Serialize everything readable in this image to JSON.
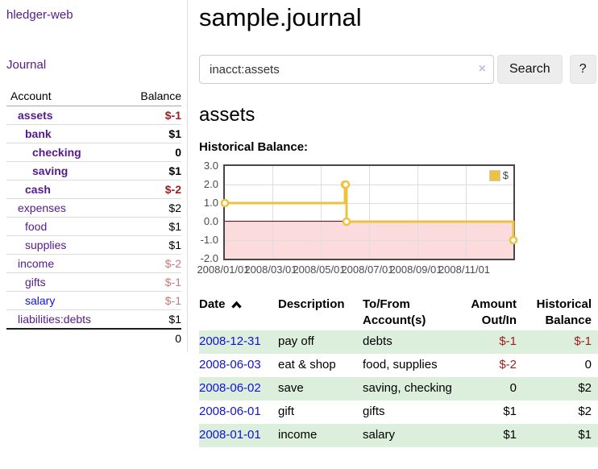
{
  "app": {
    "brand": "hledger-web",
    "nav_journal": "Journal"
  },
  "header": {
    "title": "sample.journal"
  },
  "search": {
    "value": "inacct:assets",
    "clear_icon": "×",
    "button": "Search",
    "help_button": "?"
  },
  "account_page": {
    "title": "assets",
    "chart_label": "Historical Balance:"
  },
  "sidebar": {
    "accounts_header": {
      "account": "Account",
      "balance": "Balance"
    },
    "accounts": [
      {
        "name": "assets",
        "balance": "$-1",
        "depth": 1,
        "bold": true,
        "negative": "strong"
      },
      {
        "name": "bank",
        "balance": "$1",
        "depth": 2,
        "bold": true
      },
      {
        "name": "checking",
        "balance": "0",
        "depth": 3,
        "bold": true
      },
      {
        "name": "saving",
        "balance": "$1",
        "depth": 3,
        "bold": true
      },
      {
        "name": "cash",
        "balance": "$-2",
        "depth": 2,
        "bold": true,
        "negative": "strong"
      },
      {
        "name": "expenses",
        "balance": "$2",
        "depth": 1
      },
      {
        "name": "food",
        "balance": "$1",
        "depth": 2
      },
      {
        "name": "supplies",
        "balance": "$1",
        "depth": 2
      },
      {
        "name": "income",
        "balance": "$-2",
        "depth": 1,
        "negative": "soft"
      },
      {
        "name": "gifts",
        "balance": "$-1",
        "depth": 2,
        "negative": "soft"
      },
      {
        "name": "salary",
        "balance": "$-1",
        "depth": 2,
        "negative": "soft",
        "link_color": "blue"
      },
      {
        "name": "liabilities:debts",
        "balance": "$1",
        "depth": 1
      }
    ],
    "total": "0"
  },
  "chart_data": {
    "type": "line",
    "step": true,
    "title": "Historical Balance:",
    "series": [
      {
        "name": "$",
        "color": "#EDC240",
        "points": [
          [
            "2008-01-01",
            1
          ],
          [
            "2008-06-01",
            2
          ],
          [
            "2008-06-02",
            2
          ],
          [
            "2008-06-03",
            0
          ],
          [
            "2008-12-31",
            -1
          ]
        ]
      }
    ],
    "x_ticks": [
      "2008/01/01",
      "2008/03/01",
      "2008/05/01",
      "2008/07/01",
      "2008/09/01",
      "2008/11/01"
    ],
    "y_ticks": [
      3.0,
      2.0,
      1.0,
      0.0,
      -1.0,
      -2.0
    ],
    "xlim": [
      "2008-01-01",
      "2008-12-31"
    ],
    "ylim": [
      -2,
      3
    ],
    "grid": true,
    "legend": {
      "label": "$",
      "position": "top-right"
    },
    "negative_region_color": "#FBDBDB",
    "zero_line_color": "#8B0000"
  },
  "register": {
    "columns": [
      {
        "label": "Date",
        "sort": "asc"
      },
      {
        "label": "Description"
      },
      {
        "label": "To/From Account(s)"
      },
      {
        "label": "Amount Out/In",
        "align": "right"
      },
      {
        "label": "Historical Balance",
        "align": "right"
      }
    ],
    "rows": [
      {
        "date": "2008-12-31",
        "description": "pay off",
        "accounts": "debts",
        "amount": "$-1",
        "amount_negative": true,
        "balance": "$-1",
        "balance_negative": true
      },
      {
        "date": "2008-06-03",
        "description": "eat & shop",
        "accounts": "food, supplies",
        "amount": "$-2",
        "amount_negative": true,
        "balance": "0"
      },
      {
        "date": "2008-06-02",
        "description": "save",
        "accounts": "saving, checking",
        "amount": "0",
        "balance": "$2"
      },
      {
        "date": "2008-06-01",
        "description": "gift",
        "accounts": "gifts",
        "amount": "$1",
        "balance": "$2"
      },
      {
        "date": "2008-01-01",
        "description": "income",
        "accounts": "salary",
        "amount": "$1",
        "balance": "$1"
      }
    ]
  },
  "colors": {
    "link_purple": "#551A8B",
    "link_blue": "#1111DD",
    "negative_strong": "#9C1D1D",
    "negative_soft": "#C17C7C",
    "row_stripe_green": "#DCEEDC",
    "chart_line": "#EDC240",
    "chart_negative_region": "#FBDBDB",
    "chart_zero_line": "#8B0000",
    "chart_border": "#474747",
    "button_bg": "#EDEDED"
  }
}
